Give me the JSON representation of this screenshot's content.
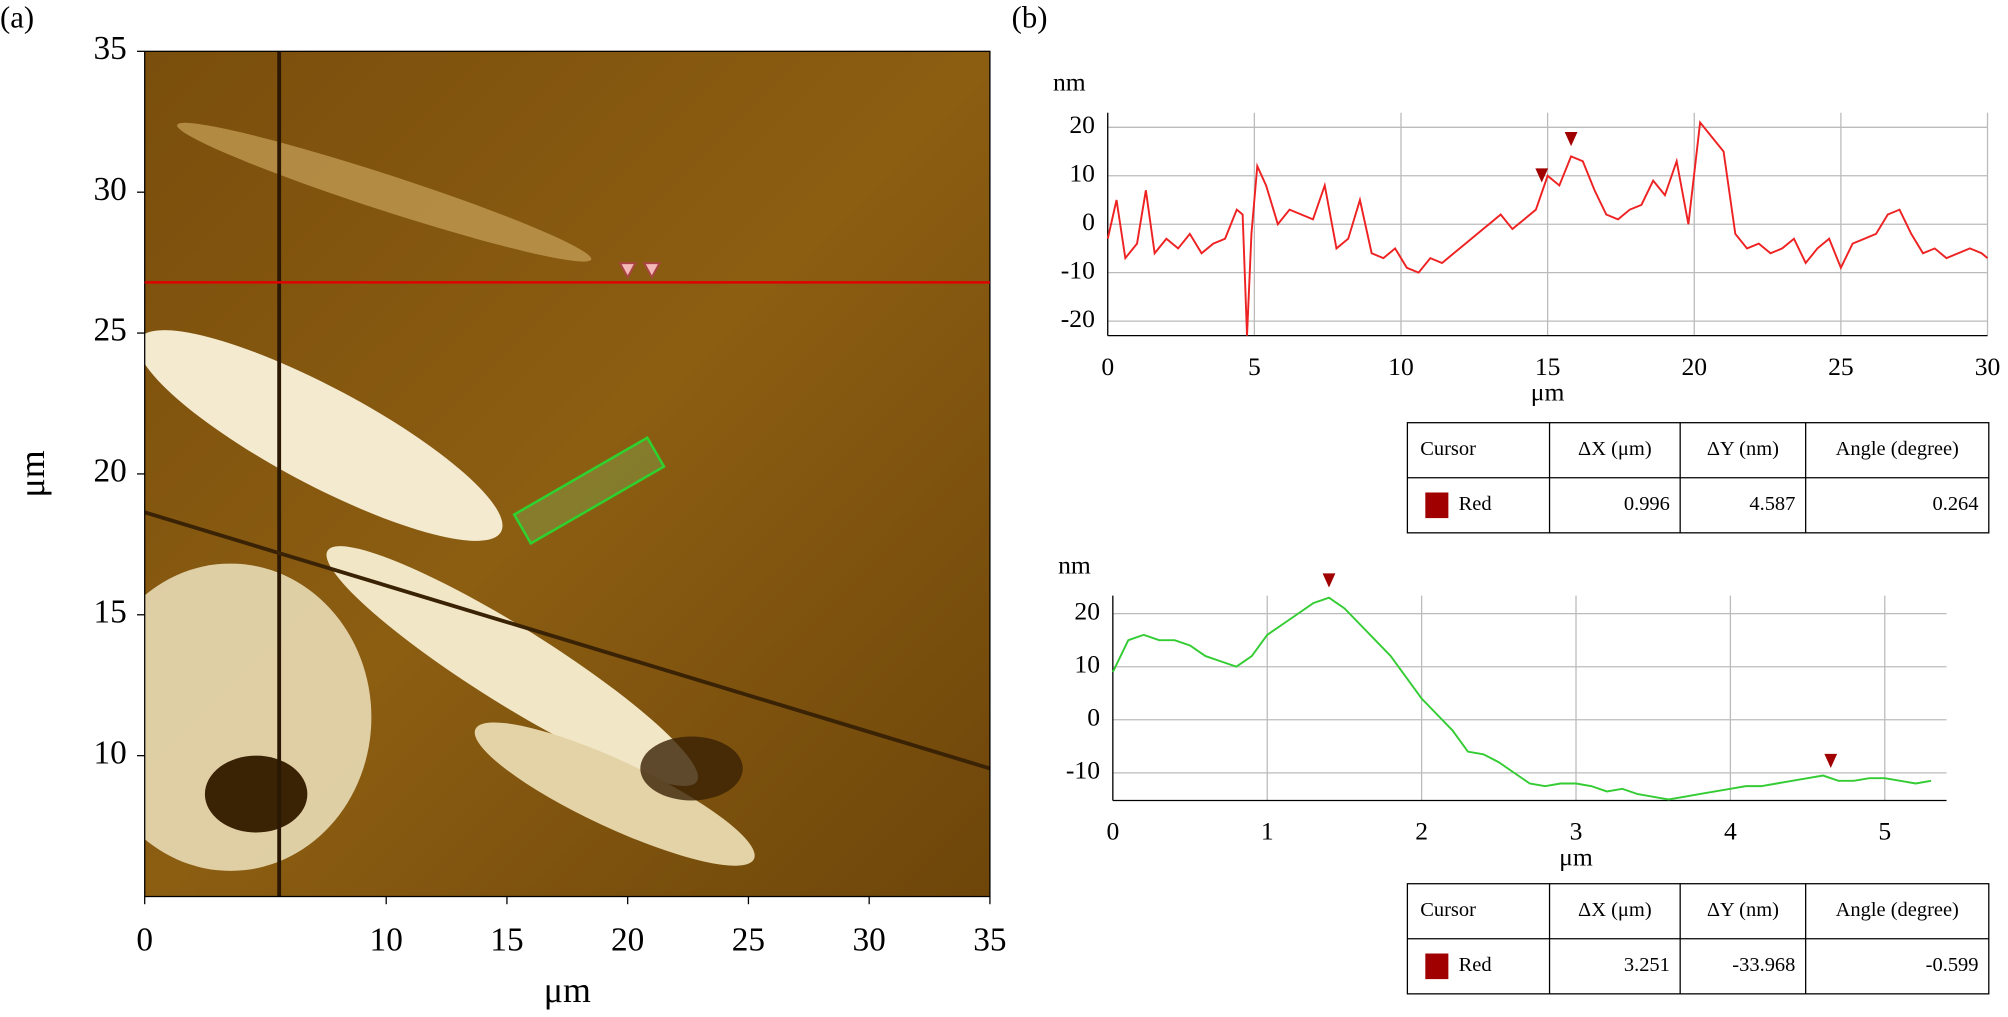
{
  "chart_data": [
    {
      "type": "image",
      "panel_label": "(a)",
      "x_label": "μm",
      "y_label": "μm",
      "xlim": [
        0,
        35
      ],
      "xticks": [
        0,
        10,
        15,
        20,
        25,
        30,
        35
      ],
      "ylim": [
        5,
        35
      ],
      "yticks": [
        10,
        15,
        20,
        25,
        30,
        35
      ],
      "profile_line_y": 26.8,
      "profile_color": "#e00000",
      "cursors": [
        20,
        21
      ]
    },
    {
      "type": "line",
      "panel_label": "(b)",
      "y_label": "nm",
      "x_label": "μm",
      "xlim": [
        0,
        30
      ],
      "xticks": [
        0,
        5,
        10,
        15,
        20,
        25,
        30
      ],
      "ylim": [
        -23,
        23
      ],
      "yticks": [
        -20,
        -10,
        0,
        10,
        20
      ],
      "grid": true,
      "x": [
        0,
        0.3,
        0.6,
        1,
        1.3,
        1.6,
        2,
        2.4,
        2.8,
        3.2,
        3.6,
        4,
        4.4,
        4.6,
        4.75,
        4.9,
        5.1,
        5.4,
        5.8,
        6.2,
        6.6,
        7,
        7.4,
        7.8,
        8.2,
        8.6,
        9,
        9.4,
        9.8,
        10.2,
        10.6,
        11,
        11.4,
        11.8,
        12.2,
        12.6,
        13,
        13.4,
        13.8,
        14.2,
        14.6,
        15,
        15.4,
        15.8,
        16.2,
        16.6,
        17,
        17.4,
        17.8,
        18.2,
        18.6,
        19,
        19.4,
        19.8,
        20.2,
        20.6,
        21,
        21.4,
        21.8,
        22.2,
        22.6,
        23,
        23.4,
        23.8,
        24.2,
        24.6,
        25,
        25.4,
        25.8,
        26.2,
        26.6,
        27,
        27.4,
        27.8,
        28.2,
        28.6,
        29,
        29.4,
        29.8,
        30
      ],
      "series": [
        {
          "color": "#ee2222",
          "values": [
            -3,
            5,
            -7,
            -4,
            7,
            -6,
            -3,
            -5,
            -2,
            -6,
            -4,
            -3,
            3,
            2,
            -23,
            -2,
            12,
            8,
            0,
            3,
            2,
            1,
            8,
            -5,
            -3,
            5,
            -6,
            -7,
            -5,
            -9,
            -10,
            -7,
            -8,
            -6,
            -4,
            -2,
            0,
            2,
            -1,
            1,
            3,
            10,
            8,
            14,
            13,
            7,
            2,
            1,
            3,
            4,
            9,
            6,
            13,
            0,
            21,
            18,
            15,
            -2,
            -5,
            -4,
            -6,
            -5,
            -3,
            -8,
            -5,
            -3,
            -9,
            -4,
            -3,
            -2,
            2,
            3,
            -2,
            -6,
            -5,
            -7,
            -6,
            -5,
            -6,
            -7
          ]
        }
      ],
      "cursors": [
        14.8,
        15.8
      ],
      "cursor_color": "#a00000",
      "table": {
        "header": [
          "Cursor",
          "ΔX (μm)",
          "ΔY (nm)",
          "Angle (degree)"
        ],
        "rows": [
          [
            "Red",
            "0.996",
            "4.587",
            "0.264"
          ]
        ]
      }
    },
    {
      "type": "line",
      "y_label": "nm",
      "x_label": "μm",
      "xlim": [
        0,
        5.4
      ],
      "xticks": [
        0,
        1,
        2,
        3,
        4,
        5
      ],
      "ylim": [
        -15.2,
        23.4
      ],
      "yticks": [
        -10,
        0,
        10,
        20
      ],
      "grid": true,
      "x": [
        0,
        0.1,
        0.2,
        0.3,
        0.4,
        0.5,
        0.6,
        0.7,
        0.8,
        0.9,
        1,
        1.1,
        1.2,
        1.3,
        1.4,
        1.5,
        1.6,
        1.7,
        1.8,
        1.9,
        2,
        2.1,
        2.2,
        2.3,
        2.4,
        2.5,
        2.6,
        2.7,
        2.8,
        2.9,
        3,
        3.1,
        3.2,
        3.3,
        3.4,
        3.5,
        3.6,
        3.7,
        3.8,
        3.9,
        4,
        4.1,
        4.2,
        4.3,
        4.4,
        4.5,
        4.6,
        4.7,
        4.8,
        4.9,
        5,
        5.1,
        5.2,
        5.3
      ],
      "series": [
        {
          "color": "#33cc33",
          "values": [
            9,
            15,
            16,
            15,
            15,
            14,
            12,
            11,
            10,
            12,
            16,
            18,
            20,
            22,
            23,
            21,
            18,
            15,
            12,
            8,
            4,
            1,
            -2,
            -6,
            -6.5,
            -8,
            -10,
            -12,
            -12.5,
            -12,
            -12,
            -12.5,
            -13.5,
            -13,
            -14,
            -14.5,
            -15,
            -14.5,
            -14,
            -13.5,
            -13,
            -12.5,
            -12.5,
            -12,
            -11.5,
            -11,
            -10.5,
            -11.5,
            -11.5,
            -11,
            -11,
            -11.5,
            -12,
            -11.5
          ]
        }
      ],
      "cursors": [
        1.4,
        4.65
      ],
      "cursor_color": "#a00000",
      "table": {
        "header": [
          "Cursor",
          "ΔX (μm)",
          "ΔY (nm)",
          "Angle (degree)"
        ],
        "rows": [
          [
            "Red",
            "3.251",
            "-33.968",
            "-0.599"
          ]
        ]
      }
    }
  ]
}
